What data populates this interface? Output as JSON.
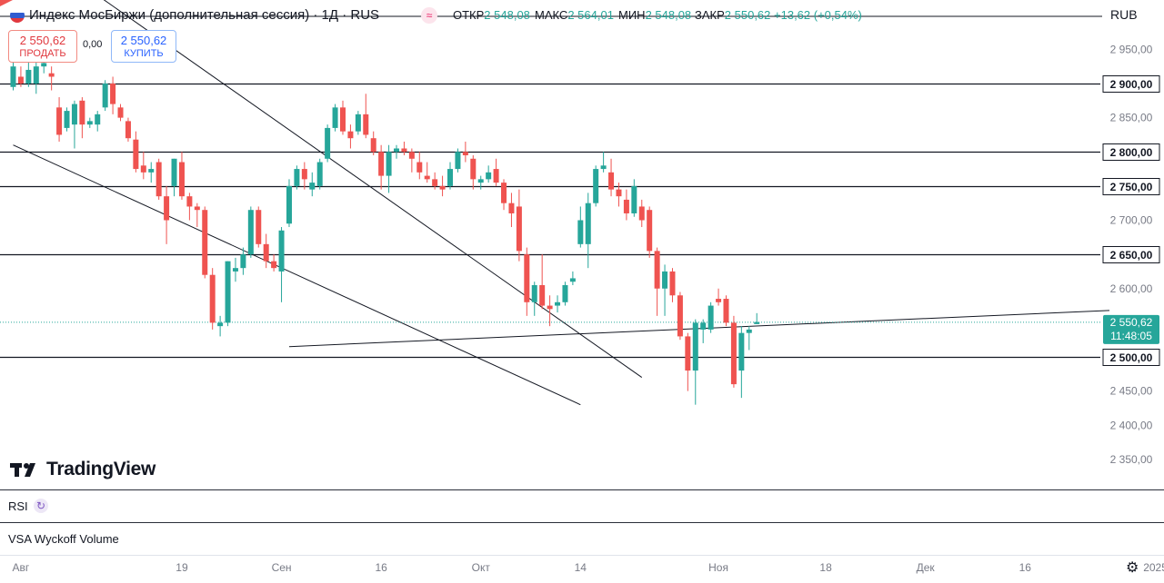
{
  "header": {
    "title": "Индекс МосБиржи (дополнительная сессия) · 1Д · RUS",
    "ohlc": [
      {
        "key": "ОТКР",
        "value": "2 548,08"
      },
      {
        "key": "МАКС",
        "value": "2 564,01"
      },
      {
        "key": "МИН",
        "value": "2 548,08"
      },
      {
        "key": "ЗАКР",
        "value": "2 550,62"
      }
    ],
    "change": "+13,62 (+0,54%)",
    "currency": "RUB",
    "flag_colors": [
      "#ffffff",
      "#2f5bd0",
      "#e0383e"
    ]
  },
  "trade": {
    "sell_price": "2 550,62",
    "sell_label": "ПРОДАТЬ",
    "spread": "0,00",
    "buy_price": "2 550,62",
    "buy_label": "КУПИТЬ"
  },
  "branding": {
    "logo_text": "TradingView"
  },
  "panes": {
    "rsi_label": "RSI",
    "vsa_label": "VSA Wyckoff Volume"
  },
  "colors": {
    "up": "#26a69a",
    "down": "#ef5350",
    "price_tag": "#26a69a",
    "line": "#131722"
  },
  "chart_data": {
    "type": "candlestick",
    "title": "Индекс МосБиржи (дополнительная сессия)",
    "ylim": [
      2316,
      3000
    ],
    "y_ticks": [
      "2 350,00",
      "2 400,00",
      "2 450,00",
      "2 600,00",
      "2 700,00",
      "2 850,00",
      "2 950,00"
    ],
    "y_tick_values": [
      2350,
      2400,
      2450,
      2600,
      2700,
      2850,
      2950
    ],
    "levels": [
      {
        "value": 2900,
        "label": "2 900,00"
      },
      {
        "value": 2800,
        "label": "2 800,00"
      },
      {
        "value": 2750,
        "label": "2 750,00"
      },
      {
        "value": 2650,
        "label": "2 650,00"
      },
      {
        "value": 2500,
        "label": "2 500,00"
      }
    ],
    "last_price": {
      "value": 2550.62,
      "label": "2 550,62",
      "countdown": "11:48:05"
    },
    "x_tick_labels": [
      {
        "label": "Авг",
        "index": 1
      },
      {
        "label": "19",
        "index": 22
      },
      {
        "label": "Сен",
        "index": 35
      },
      {
        "label": "16",
        "index": 48
      },
      {
        "label": "Окт",
        "index": 61
      },
      {
        "label": "14",
        "index": 74
      },
      {
        "label": "Ноя",
        "index": 92
      },
      {
        "label": "18",
        "index": 106
      },
      {
        "label": "Дек",
        "index": 119
      },
      {
        "label": "16",
        "index": 132
      },
      {
        "label": "2025",
        "index": 149
      }
    ],
    "trendlines": [
      {
        "from": [
          0,
          2810
        ],
        "to": [
          74,
          2430
        ]
      },
      {
        "from": [
          2,
          3100
        ],
        "to": [
          82,
          2470
        ]
      },
      {
        "from": [
          36,
          2515
        ],
        "to": [
          143,
          2568
        ]
      }
    ],
    "candles": [
      {
        "o": 2895,
        "h": 2940,
        "l": 2890,
        "c": 2925
      },
      {
        "o": 2910,
        "h": 2925,
        "l": 2895,
        "c": 2900
      },
      {
        "o": 2900,
        "h": 2935,
        "l": 2895,
        "c": 2920
      },
      {
        "o": 2900,
        "h": 2935,
        "l": 2885,
        "c": 2925
      },
      {
        "o": 2925,
        "h": 2935,
        "l": 2915,
        "c": 2930
      },
      {
        "o": 2915,
        "h": 2925,
        "l": 2890,
        "c": 2910
      },
      {
        "o": 2865,
        "h": 2880,
        "l": 2815,
        "c": 2825
      },
      {
        "o": 2835,
        "h": 2865,
        "l": 2830,
        "c": 2860
      },
      {
        "o": 2840,
        "h": 2875,
        "l": 2805,
        "c": 2870
      },
      {
        "o": 2875,
        "h": 2880,
        "l": 2820,
        "c": 2840
      },
      {
        "o": 2840,
        "h": 2850,
        "l": 2835,
        "c": 2845
      },
      {
        "o": 2840,
        "h": 2860,
        "l": 2830,
        "c": 2855
      },
      {
        "o": 2865,
        "h": 2905,
        "l": 2860,
        "c": 2900
      },
      {
        "o": 2900,
        "h": 2910,
        "l": 2855,
        "c": 2870
      },
      {
        "o": 2865,
        "h": 2870,
        "l": 2845,
        "c": 2850
      },
      {
        "o": 2845,
        "h": 2850,
        "l": 2815,
        "c": 2820
      },
      {
        "o": 2818,
        "h": 2830,
        "l": 2770,
        "c": 2775
      },
      {
        "o": 2780,
        "h": 2800,
        "l": 2760,
        "c": 2770
      },
      {
        "o": 2770,
        "h": 2785,
        "l": 2755,
        "c": 2775
      },
      {
        "o": 2785,
        "h": 2790,
        "l": 2730,
        "c": 2735
      },
      {
        "o": 2735,
        "h": 2750,
        "l": 2665,
        "c": 2700
      },
      {
        "o": 2750,
        "h": 2790,
        "l": 2735,
        "c": 2790
      },
      {
        "o": 2785,
        "h": 2800,
        "l": 2730,
        "c": 2735
      },
      {
        "o": 2735,
        "h": 2740,
        "l": 2700,
        "c": 2720
      },
      {
        "o": 2720,
        "h": 2725,
        "l": 2690,
        "c": 2715
      },
      {
        "o": 2715,
        "h": 2720,
        "l": 2615,
        "c": 2620
      },
      {
        "o": 2620,
        "h": 2630,
        "l": 2540,
        "c": 2550
      },
      {
        "o": 2545,
        "h": 2560,
        "l": 2530,
        "c": 2550
      },
      {
        "o": 2550,
        "h": 2640,
        "l": 2545,
        "c": 2640
      },
      {
        "o": 2625,
        "h": 2645,
        "l": 2610,
        "c": 2630
      },
      {
        "o": 2630,
        "h": 2660,
        "l": 2620,
        "c": 2650
      },
      {
        "o": 2650,
        "h": 2720,
        "l": 2645,
        "c": 2715
      },
      {
        "o": 2715,
        "h": 2720,
        "l": 2660,
        "c": 2665
      },
      {
        "o": 2665,
        "h": 2680,
        "l": 2630,
        "c": 2640
      },
      {
        "o": 2640,
        "h": 2650,
        "l": 2625,
        "c": 2630
      },
      {
        "o": 2625,
        "h": 2690,
        "l": 2580,
        "c": 2685
      },
      {
        "o": 2695,
        "h": 2760,
        "l": 2690,
        "c": 2750
      },
      {
        "o": 2750,
        "h": 2780,
        "l": 2745,
        "c": 2775
      },
      {
        "o": 2775,
        "h": 2785,
        "l": 2745,
        "c": 2760
      },
      {
        "o": 2745,
        "h": 2770,
        "l": 2735,
        "c": 2755
      },
      {
        "o": 2750,
        "h": 2790,
        "l": 2745,
        "c": 2785
      },
      {
        "o": 2790,
        "h": 2840,
        "l": 2785,
        "c": 2835
      },
      {
        "o": 2835,
        "h": 2870,
        "l": 2830,
        "c": 2865
      },
      {
        "o": 2865,
        "h": 2875,
        "l": 2825,
        "c": 2830
      },
      {
        "o": 2830,
        "h": 2840,
        "l": 2805,
        "c": 2820
      },
      {
        "o": 2830,
        "h": 2860,
        "l": 2825,
        "c": 2855
      },
      {
        "o": 2855,
        "h": 2885,
        "l": 2820,
        "c": 2825
      },
      {
        "o": 2820,
        "h": 2830,
        "l": 2795,
        "c": 2800
      },
      {
        "o": 2800,
        "h": 2810,
        "l": 2745,
        "c": 2765
      },
      {
        "o": 2765,
        "h": 2810,
        "l": 2740,
        "c": 2800
      },
      {
        "o": 2800,
        "h": 2810,
        "l": 2790,
        "c": 2805
      },
      {
        "o": 2805,
        "h": 2815,
        "l": 2795,
        "c": 2800
      },
      {
        "o": 2800,
        "h": 2805,
        "l": 2770,
        "c": 2790
      },
      {
        "o": 2785,
        "h": 2800,
        "l": 2760,
        "c": 2770
      },
      {
        "o": 2765,
        "h": 2785,
        "l": 2755,
        "c": 2760
      },
      {
        "o": 2760,
        "h": 2770,
        "l": 2745,
        "c": 2750
      },
      {
        "o": 2750,
        "h": 2765,
        "l": 2735,
        "c": 2745
      },
      {
        "o": 2750,
        "h": 2785,
        "l": 2745,
        "c": 2775
      },
      {
        "o": 2775,
        "h": 2805,
        "l": 2770,
        "c": 2800
      },
      {
        "o": 2800,
        "h": 2815,
        "l": 2785,
        "c": 2795
      },
      {
        "o": 2790,
        "h": 2795,
        "l": 2745,
        "c": 2760
      },
      {
        "o": 2755,
        "h": 2765,
        "l": 2745,
        "c": 2760
      },
      {
        "o": 2760,
        "h": 2780,
        "l": 2755,
        "c": 2770
      },
      {
        "o": 2775,
        "h": 2790,
        "l": 2750,
        "c": 2755
      },
      {
        "o": 2755,
        "h": 2760,
        "l": 2715,
        "c": 2725
      },
      {
        "o": 2725,
        "h": 2740,
        "l": 2690,
        "c": 2710
      },
      {
        "o": 2720,
        "h": 2745,
        "l": 2640,
        "c": 2655
      },
      {
        "o": 2650,
        "h": 2660,
        "l": 2560,
        "c": 2580
      },
      {
        "o": 2580,
        "h": 2610,
        "l": 2560,
        "c": 2605
      },
      {
        "o": 2605,
        "h": 2650,
        "l": 2570,
        "c": 2575
      },
      {
        "o": 2575,
        "h": 2590,
        "l": 2545,
        "c": 2570
      },
      {
        "o": 2575,
        "h": 2590,
        "l": 2565,
        "c": 2580
      },
      {
        "o": 2580,
        "h": 2610,
        "l": 2575,
        "c": 2605
      },
      {
        "o": 2610,
        "h": 2625,
        "l": 2605,
        "c": 2615
      },
      {
        "o": 2665,
        "h": 2720,
        "l": 2660,
        "c": 2700
      },
      {
        "o": 2665,
        "h": 2740,
        "l": 2630,
        "c": 2725
      },
      {
        "o": 2725,
        "h": 2780,
        "l": 2720,
        "c": 2775
      },
      {
        "o": 2775,
        "h": 2800,
        "l": 2770,
        "c": 2780
      },
      {
        "o": 2770,
        "h": 2790,
        "l": 2735,
        "c": 2745
      },
      {
        "o": 2745,
        "h": 2755,
        "l": 2720,
        "c": 2735
      },
      {
        "o": 2730,
        "h": 2745,
        "l": 2700,
        "c": 2710
      },
      {
        "o": 2710,
        "h": 2760,
        "l": 2705,
        "c": 2750
      },
      {
        "o": 2720,
        "h": 2730,
        "l": 2690,
        "c": 2700
      },
      {
        "o": 2715,
        "h": 2720,
        "l": 2645,
        "c": 2655
      },
      {
        "o": 2655,
        "h": 2660,
        "l": 2560,
        "c": 2600
      },
      {
        "o": 2600,
        "h": 2635,
        "l": 2560,
        "c": 2625
      },
      {
        "o": 2625,
        "h": 2630,
        "l": 2580,
        "c": 2590
      },
      {
        "o": 2590,
        "h": 2595,
        "l": 2525,
        "c": 2530
      },
      {
        "o": 2530,
        "h": 2535,
        "l": 2450,
        "c": 2480
      },
      {
        "o": 2480,
        "h": 2555,
        "l": 2430,
        "c": 2550
      },
      {
        "o": 2540,
        "h": 2555,
        "l": 2520,
        "c": 2550
      },
      {
        "o": 2540,
        "h": 2580,
        "l": 2535,
        "c": 2575
      },
      {
        "o": 2585,
        "h": 2600,
        "l": 2575,
        "c": 2580
      },
      {
        "o": 2585,
        "h": 2590,
        "l": 2545,
        "c": 2550
      },
      {
        "o": 2550,
        "h": 2560,
        "l": 2455,
        "c": 2460
      },
      {
        "o": 2480,
        "h": 2545,
        "l": 2440,
        "c": 2535
      },
      {
        "o": 2535,
        "h": 2545,
        "l": 2510,
        "c": 2540
      },
      {
        "o": 2548,
        "h": 2564,
        "l": 2548,
        "c": 2551
      }
    ]
  }
}
